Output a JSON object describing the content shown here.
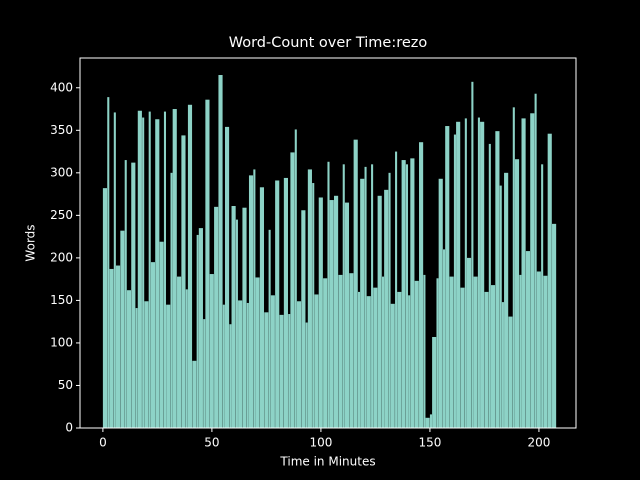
{
  "chart_data": {
    "type": "bar",
    "title": "Word-Count over Time:rezo",
    "x_label": "Time in Minutes",
    "y_label": "Words",
    "color": "#8dd3c7",
    "x": [
      0,
      2,
      3,
      5,
      6,
      8,
      10,
      11,
      13,
      15,
      16,
      18,
      19,
      21,
      22,
      24,
      26,
      28,
      29,
      31,
      32,
      34,
      36,
      38,
      39,
      41,
      43,
      44,
      46,
      47,
      49,
      51,
      53,
      55,
      56,
      58,
      59,
      61,
      62,
      64,
      66,
      67,
      69,
      70,
      72,
      74,
      76,
      77,
      79,
      81,
      83,
      85,
      86,
      88,
      89,
      91,
      93,
      94,
      96,
      97,
      99,
      101,
      103,
      104,
      106,
      108,
      110,
      111,
      113,
      115,
      117,
      118,
      120,
      121,
      123,
      124,
      126,
      128,
      129,
      131,
      132,
      134,
      135,
      137,
      139,
      140,
      141,
      143,
      145,
      147,
      148,
      150,
      151,
      153,
      154,
      156,
      157,
      159,
      161,
      162,
      164,
      166,
      167,
      169,
      170,
      172,
      173,
      175,
      177,
      178,
      180,
      182,
      183,
      184,
      186,
      188,
      189,
      191,
      192,
      194,
      196,
      198,
      199,
      201,
      202,
      204,
      206
    ],
    "values": [
      282,
      389,
      187,
      371,
      191,
      232,
      315,
      162,
      312,
      141,
      373,
      365,
      149,
      372,
      195,
      363,
      219,
      372,
      145,
      300,
      375,
      178,
      344,
      163,
      380,
      79,
      227,
      235,
      128,
      386,
      181,
      260,
      415,
      145,
      354,
      122,
      261,
      245,
      150,
      259,
      147,
      297,
      304,
      177,
      283,
      136,
      233,
      156,
      291,
      133,
      294,
      134,
      324,
      351,
      149,
      256,
      124,
      304,
      288,
      157,
      271,
      176,
      313,
      268,
      273,
      180,
      310,
      265,
      182,
      339,
      160,
      293,
      307,
      155,
      310,
      165,
      273,
      178,
      280,
      300,
      146,
      325,
      160,
      315,
      310,
      156,
      317,
      173,
      336,
      180,
      12,
      16,
      107,
      176,
      293,
      210,
      355,
      178,
      345,
      360,
      165,
      364,
      200,
      407,
      178,
      365,
      360,
      160,
      334,
      168,
      349,
      285,
      148,
      300,
      131,
      377,
      316,
      180,
      364,
      208,
      370,
      393,
      184,
      310,
      179,
      346,
      240
    ],
    "xlim": [
      -10.5,
      217
    ],
    "ylim": [
      0,
      435
    ],
    "xticks": [
      0,
      50,
      100,
      150,
      200
    ],
    "yticks": [
      0,
      50,
      100,
      150,
      200,
      250,
      300,
      350,
      400
    ]
  }
}
